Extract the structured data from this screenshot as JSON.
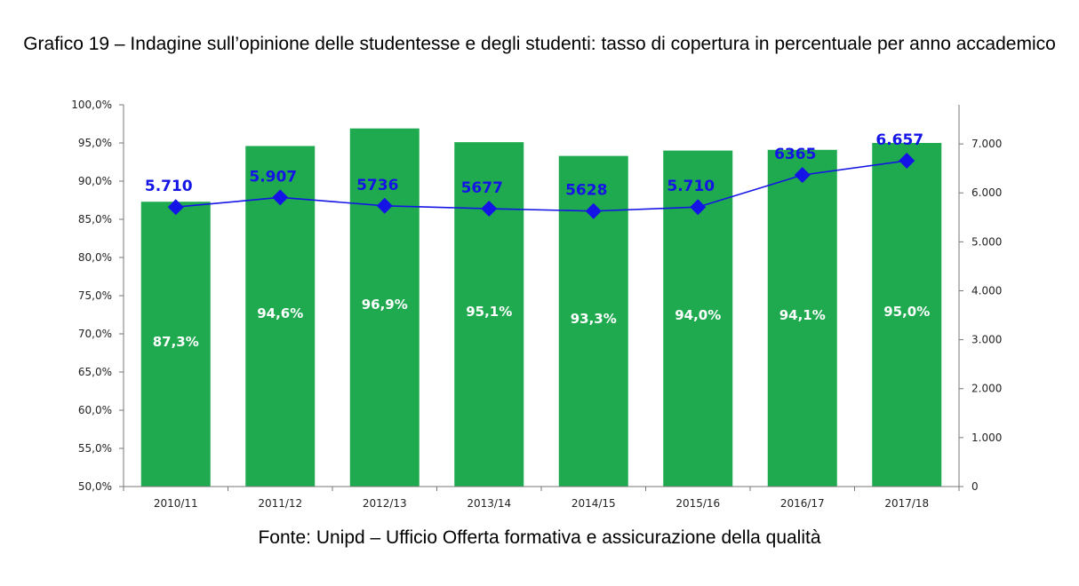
{
  "title": "Grafico 19 – Indagine sull’opinione delle studentesse e degli studenti: tasso di copertura in percentuale per anno accademico",
  "source": "Fonte: Unipd – Ufficio Offerta formativa e assicurazione della qualità",
  "chart_data": {
    "type": "bar",
    "categories": [
      "2010/11",
      "2011/12",
      "2012/13",
      "2013/14",
      "2014/15",
      "2015/16",
      "2016/17",
      "2017/18"
    ],
    "series": [
      {
        "type": "bar",
        "axis": "left",
        "values": [
          87.3,
          94.6,
          96.9,
          95.1,
          93.3,
          94.0,
          94.1,
          95.0
        ],
        "labels": [
          "87,3%",
          "94,6%",
          "96,9%",
          "95,1%",
          "93,3%",
          "94,0%",
          "94,1%",
          "95,0%"
        ],
        "color": "#1faa50"
      },
      {
        "type": "line",
        "axis": "right",
        "values": [
          5710,
          5907,
          5736,
          5677,
          5628,
          5710,
          6365,
          6657
        ],
        "labels": [
          "5.710",
          "5.907",
          "5736",
          "5677",
          "5628",
          "5.710",
          "6365",
          "6.657"
        ],
        "color": "#1414e6",
        "marker": "diamond"
      }
    ],
    "y_left": {
      "range": [
        50,
        100
      ],
      "ticks": [
        50,
        55,
        60,
        65,
        70,
        75,
        80,
        85,
        90,
        95,
        100
      ],
      "tick_labels": [
        "50,0%",
        "55,0%",
        "60,0%",
        "65,0%",
        "70,0%",
        "75,0%",
        "80,0%",
        "85,0%",
        "90,0%",
        "95,0%",
        "100,0%"
      ]
    },
    "y_right": {
      "range": [
        0,
        7800
      ],
      "ticks": [
        0,
        1000,
        2000,
        3000,
        4000,
        5000,
        6000,
        7000
      ],
      "tick_labels": [
        "0",
        "1.000",
        "2.000",
        "3.000",
        "4.000",
        "5.000",
        "6.000",
        "7.000"
      ]
    },
    "grid": false,
    "legend": "none"
  }
}
